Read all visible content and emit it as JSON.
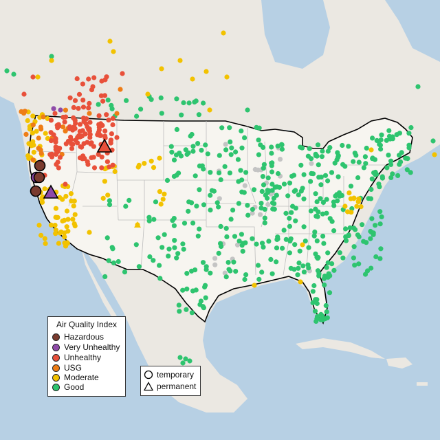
{
  "legend": {
    "title": "Air Quality Index",
    "items": [
      {
        "label": "Hazardous",
        "color": "#7a3b2e"
      },
      {
        "label": "Very Unhealthy",
        "color": "#8e4aa8"
      },
      {
        "label": "Unhealthy",
        "color": "#e8503a"
      },
      {
        "label": "USG",
        "color": "#ee7d16"
      },
      {
        "label": "Moderate",
        "color": "#f2c200"
      },
      {
        "label": "Good",
        "color": "#2ec46f"
      }
    ]
  },
  "type_legend": {
    "items": [
      {
        "label": "temporary",
        "shape": "circle"
      },
      {
        "label": "permanent",
        "shape": "triangle"
      }
    ]
  },
  "colors": {
    "water": "#b7d0e4",
    "land": "#ece9e4",
    "us_land": "#f7f5f0",
    "no_data": "#c4c4c4"
  }
}
